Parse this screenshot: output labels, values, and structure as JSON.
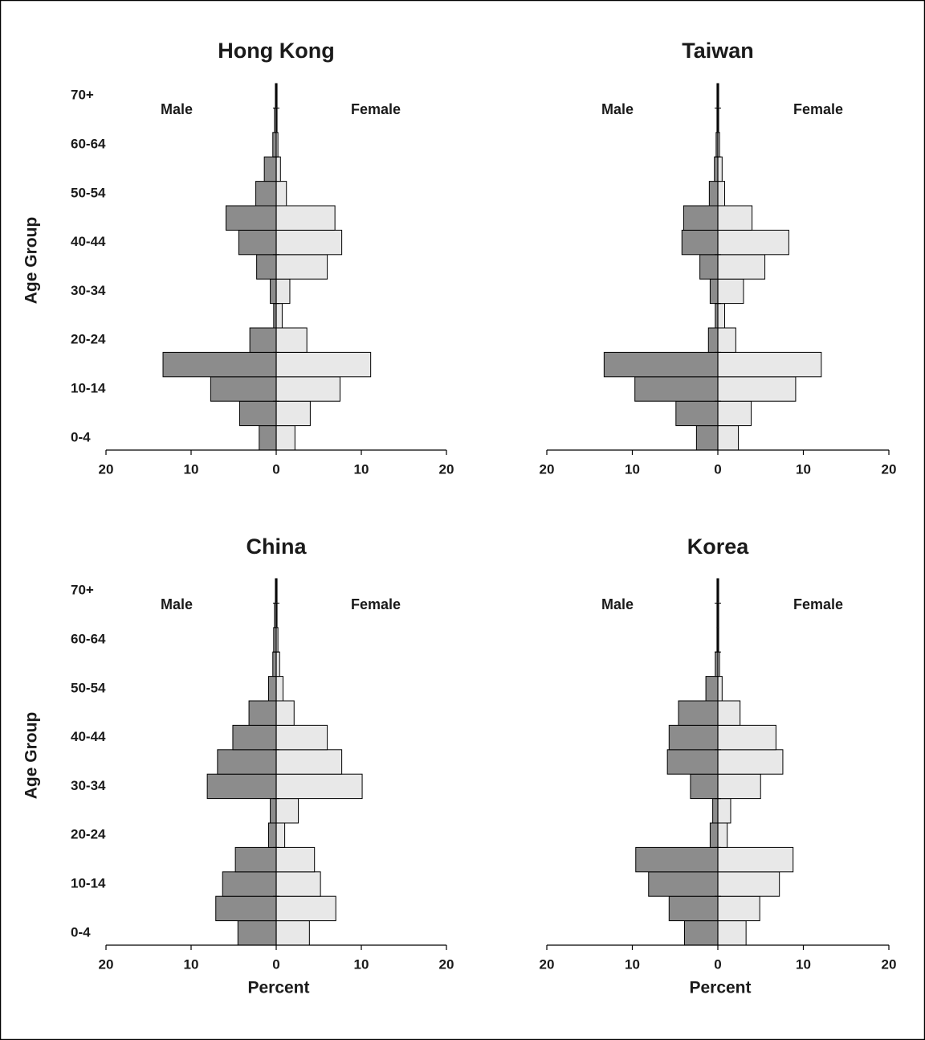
{
  "chart_data": [
    {
      "type": "pyramid",
      "title": "Hong Kong",
      "categories": [
        "0-4",
        null,
        "10-14",
        null,
        "20-24",
        null,
        "30-34",
        null,
        "40-44",
        null,
        "50-54",
        null,
        "60-64",
        null,
        "70+"
      ],
      "series": [
        {
          "name": "Male",
          "color": "#8c8c8c",
          "values": [
            2.0,
            4.3,
            7.7,
            13.3,
            3.1,
            0.3,
            0.7,
            2.3,
            4.4,
            5.9,
            2.4,
            1.4,
            0.4,
            0.2,
            0.1
          ]
        },
        {
          "name": "Female",
          "color": "#e8e8e8",
          "values": [
            2.2,
            4.0,
            7.5,
            11.1,
            3.6,
            0.7,
            1.6,
            6.0,
            7.7,
            6.9,
            1.2,
            0.5,
            0.2,
            0.1,
            0.1
          ]
        }
      ],
      "ylabel": "Age Group",
      "xlim": [
        -20,
        20
      ],
      "xticks": [
        {
          "value": -20,
          "label": "20"
        },
        {
          "value": -10,
          "label": "10"
        },
        0,
        10,
        20
      ]
    },
    {
      "type": "pyramid",
      "title": "Taiwan",
      "series": [
        {
          "name": "Male",
          "color": "#8c8c8c",
          "values": [
            2.5,
            4.9,
            9.7,
            13.3,
            1.1,
            0.3,
            0.9,
            2.1,
            4.2,
            4.0,
            1.0,
            0.4,
            0.2,
            0.1,
            0.1
          ]
        },
        {
          "name": "Female",
          "color": "#e8e8e8",
          "values": [
            2.4,
            3.9,
            9.1,
            12.1,
            2.1,
            0.8,
            3.0,
            5.5,
            8.3,
            4.0,
            0.8,
            0.5,
            0.2,
            0.1,
            0.1
          ]
        }
      ],
      "xlim": [
        -20,
        20
      ],
      "xticks": [
        {
          "value": -20,
          "label": "20"
        },
        {
          "value": -10,
          "label": "10"
        },
        0,
        10,
        20
      ]
    },
    {
      "type": "pyramid",
      "title": "China",
      "categories": [
        "0-4",
        null,
        "10-14",
        null,
        "20-24",
        null,
        "30-34",
        null,
        "40-44",
        null,
        "50-54",
        null,
        "60-64",
        null,
        "70+"
      ],
      "series": [
        {
          "name": "Male",
          "color": "#8c8c8c",
          "values": [
            4.5,
            7.1,
            6.3,
            4.8,
            0.9,
            0.7,
            8.1,
            6.9,
            5.1,
            3.2,
            0.9,
            0.4,
            0.3,
            0.2,
            0.1
          ]
        },
        {
          "name": "Female",
          "color": "#e8e8e8",
          "values": [
            3.9,
            7.0,
            5.2,
            4.5,
            1.0,
            2.6,
            10.1,
            7.7,
            6.0,
            2.1,
            0.8,
            0.4,
            0.2,
            0.1,
            0.1
          ]
        }
      ],
      "ylabel": "Age Group",
      "xlabel": "Percent",
      "xlim": [
        -20,
        20
      ],
      "xticks": [
        {
          "value": -20,
          "label": "20"
        },
        {
          "value": -10,
          "label": "10"
        },
        0,
        10,
        20
      ]
    },
    {
      "type": "pyramid",
      "title": "Korea",
      "series": [
        {
          "name": "Male",
          "color": "#8c8c8c",
          "values": [
            3.9,
            5.7,
            8.1,
            9.6,
            0.9,
            0.6,
            3.2,
            5.9,
            5.7,
            4.6,
            1.4,
            0.3,
            0.1,
            0.1,
            0.1
          ]
        },
        {
          "name": "Female",
          "color": "#e8e8e8",
          "values": [
            3.3,
            4.9,
            7.2,
            8.8,
            1.1,
            1.5,
            5.0,
            7.6,
            6.8,
            2.6,
            0.5,
            0.2,
            0.1,
            0.1,
            0.1
          ]
        }
      ],
      "xlabel": "Percent",
      "xlim": [
        -20,
        20
      ],
      "xticks": [
        {
          "value": -20,
          "label": "20"
        },
        {
          "value": -10,
          "label": "10"
        },
        0,
        10,
        20
      ]
    }
  ]
}
